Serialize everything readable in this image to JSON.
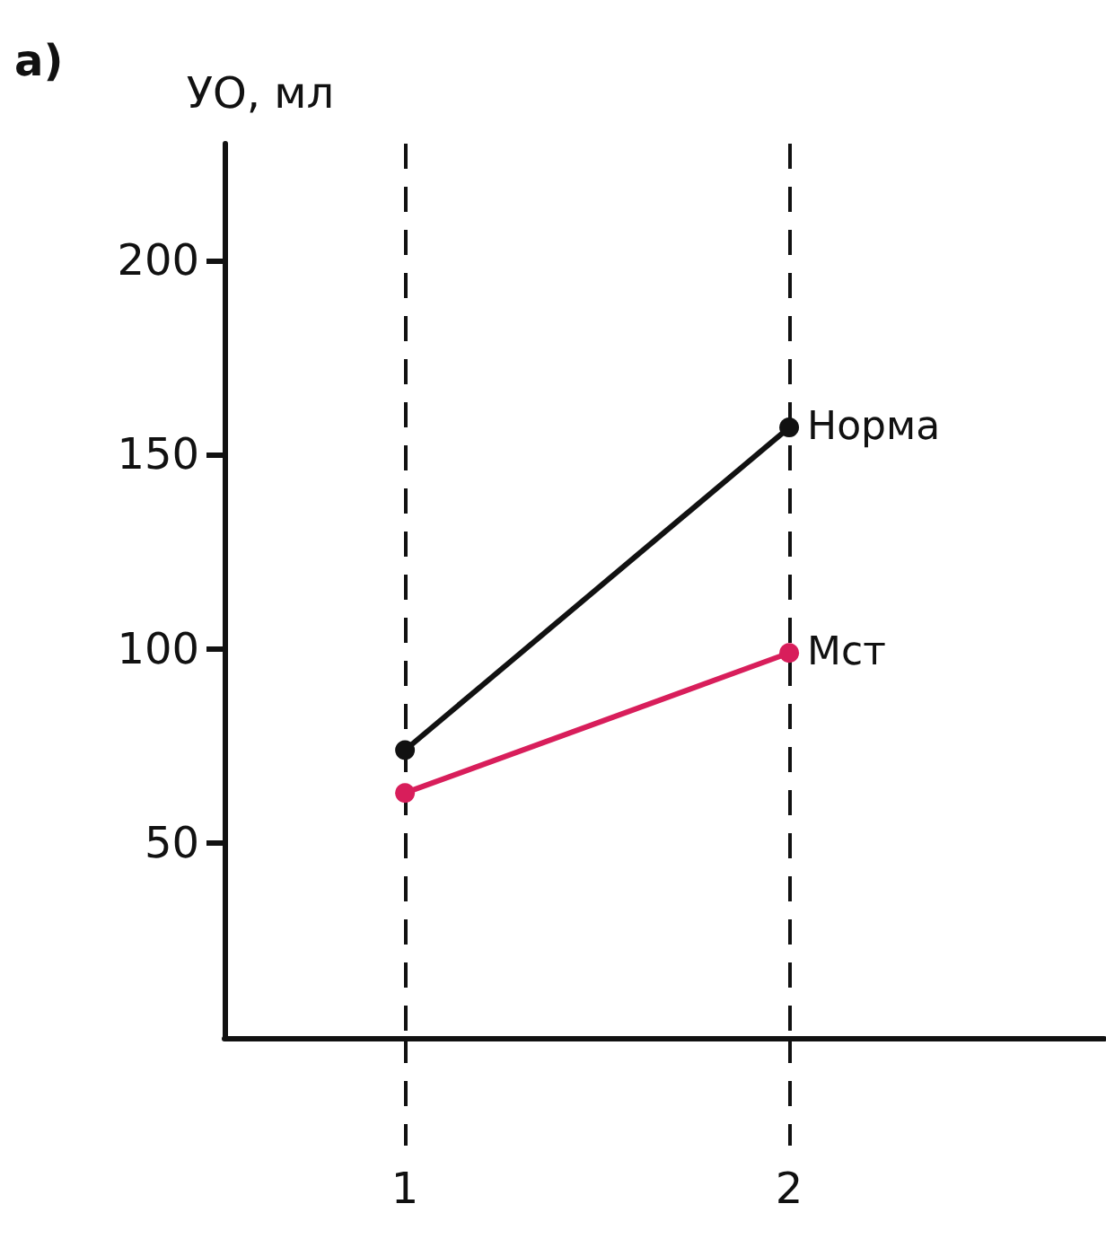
{
  "chart_data": {
    "type": "line",
    "ylabel": "УО, мл",
    "annotations": [
      "а)"
    ],
    "x": [
      1,
      2
    ],
    "xlim": [
      0.53,
      2.82
    ],
    "xticks": [
      1,
      2
    ],
    "ylim": [
      0,
      230
    ],
    "yticks": [
      50,
      100,
      150,
      200
    ],
    "series": [
      {
        "name": "Норма",
        "color": "#111111",
        "values": [
          74,
          157
        ]
      },
      {
        "name": "Мст",
        "color": "#d81e5b",
        "values": [
          63,
          99
        ]
      }
    ],
    "grid": "x",
    "marker": "circle",
    "line_style": "solid"
  }
}
